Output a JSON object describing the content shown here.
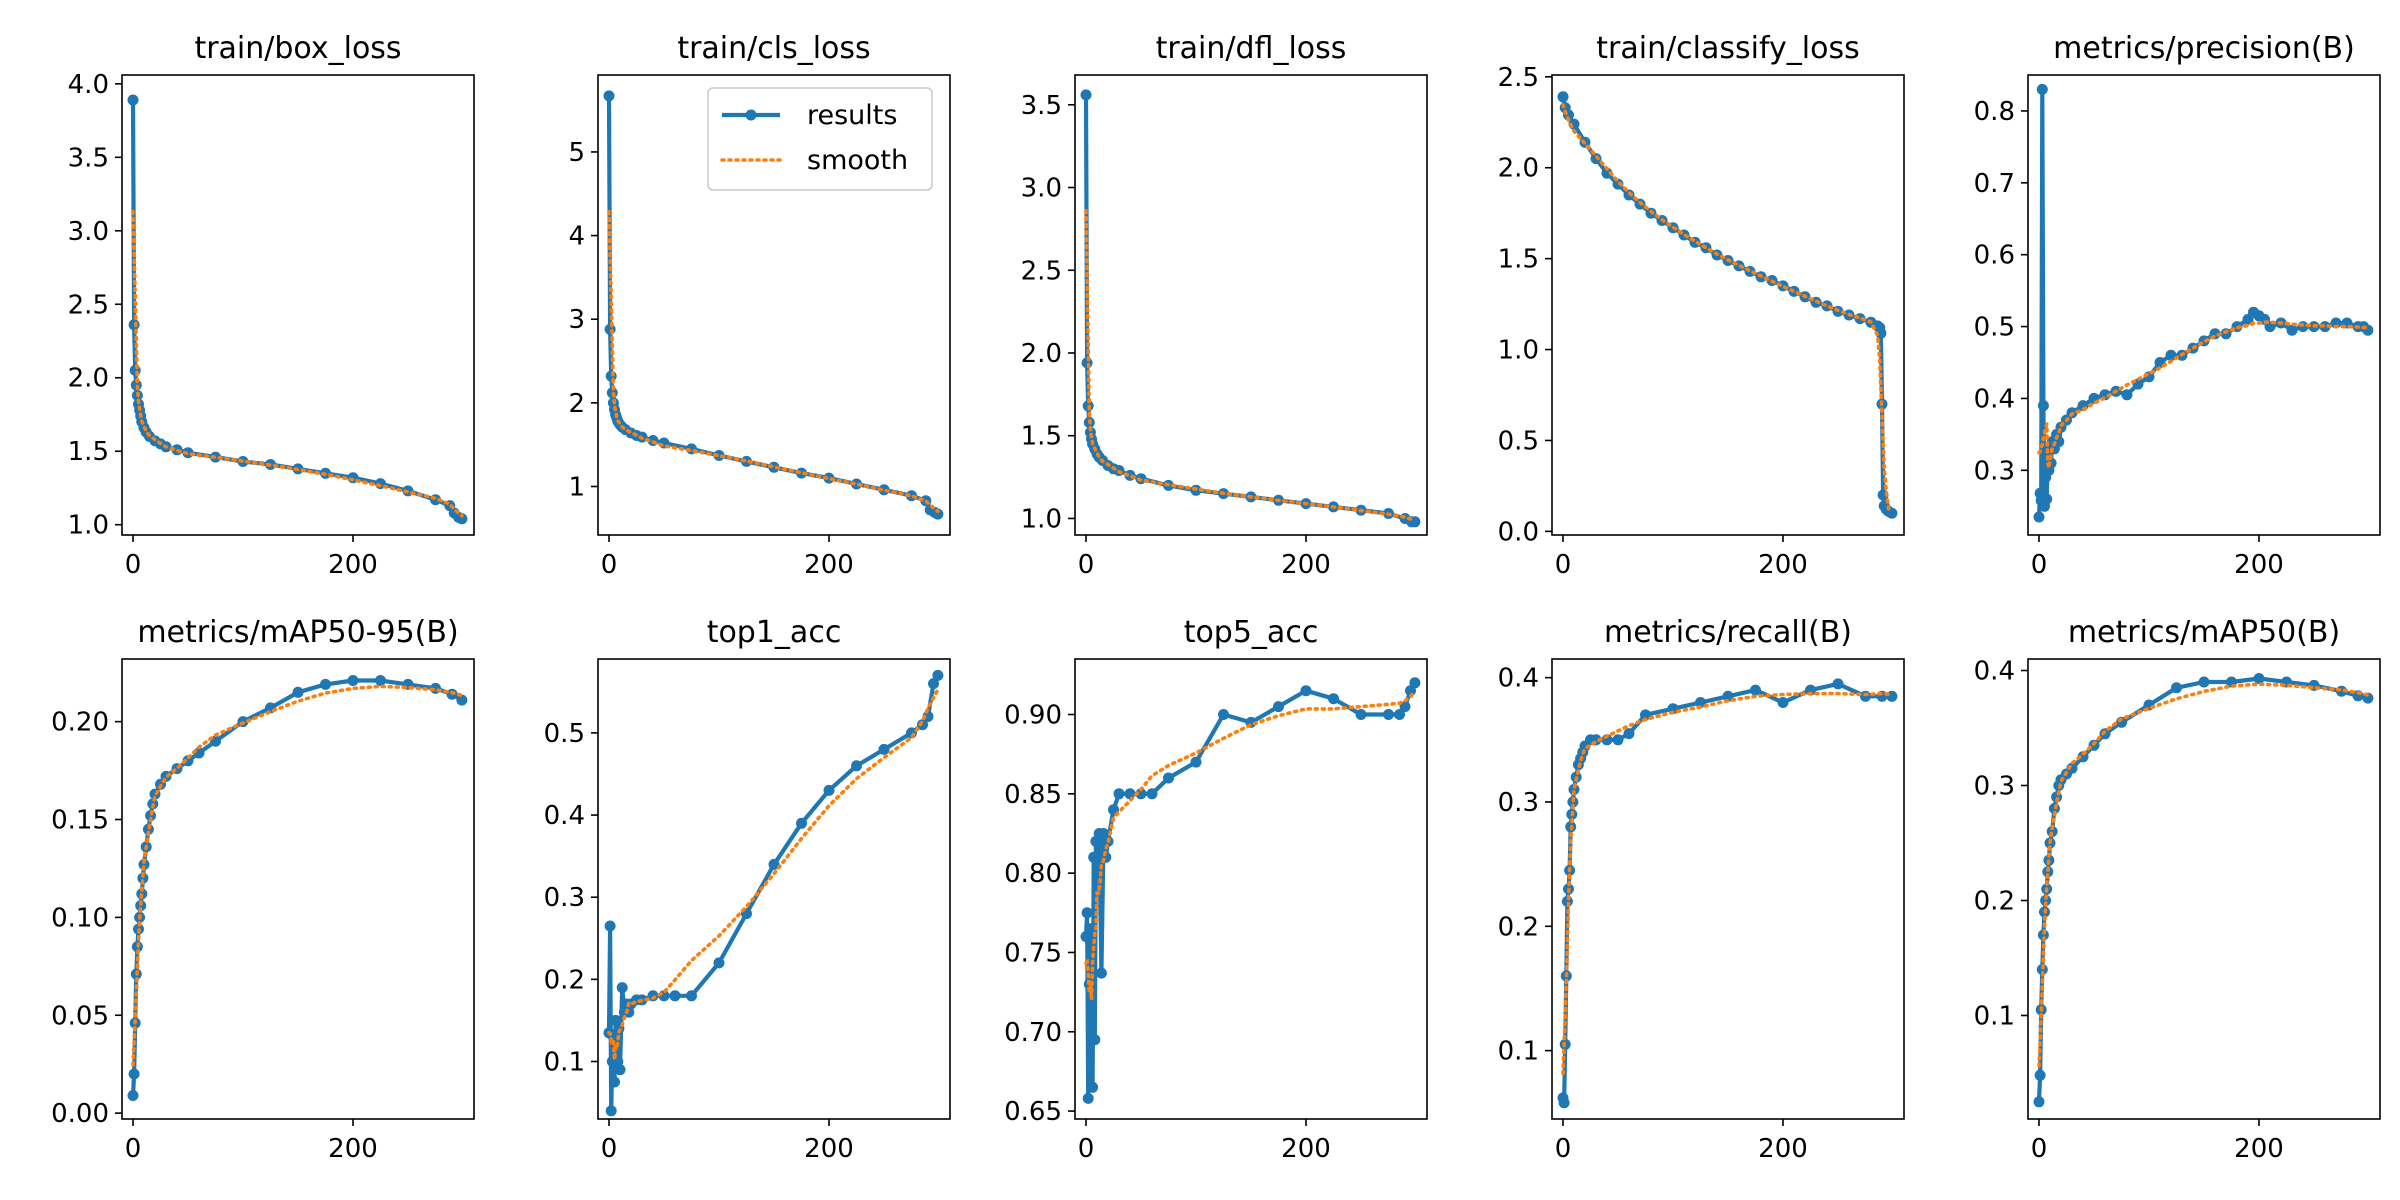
{
  "style": {
    "results_color": "#1f77b4",
    "smooth_color": "#ff7f0e"
  },
  "legend": {
    "entries": [
      "results",
      "smooth"
    ],
    "placement": "upper-right of train/cls_loss"
  },
  "chart_data": [
    {
      "type": "line",
      "title": "train/box_loss",
      "xlim": [
        -10,
        310
      ],
      "ylim": [
        0.93,
        4.06
      ],
      "xticks": [
        0,
        200
      ],
      "yticks": [
        1.0,
        1.5,
        2.0,
        2.5,
        3.0,
        3.5,
        4.0
      ],
      "yfmt": 1,
      "series": [
        {
          "name": "results",
          "x": [
            0,
            1,
            2,
            3,
            4,
            5,
            6,
            7,
            8,
            10,
            12,
            15,
            20,
            25,
            30,
            40,
            50,
            75,
            100,
            125,
            150,
            175,
            200,
            225,
            250,
            275,
            288,
            292,
            296,
            299
          ],
          "y": [
            3.89,
            2.36,
            2.05,
            1.95,
            1.88,
            1.82,
            1.78,
            1.74,
            1.7,
            1.66,
            1.63,
            1.6,
            1.57,
            1.55,
            1.53,
            1.51,
            1.49,
            1.46,
            1.43,
            1.41,
            1.38,
            1.35,
            1.32,
            1.28,
            1.23,
            1.17,
            1.13,
            1.08,
            1.05,
            1.04
          ]
        }
      ]
    },
    {
      "type": "line",
      "title": "train/cls_loss",
      "xlim": [
        -10,
        310
      ],
      "ylim": [
        0.42,
        5.92
      ],
      "xticks": [
        0,
        200
      ],
      "yticks": [
        1,
        2,
        3,
        4,
        5
      ],
      "yfmt": 0,
      "series": [
        {
          "name": "results",
          "x": [
            0,
            1,
            2,
            3,
            4,
            5,
            6,
            7,
            8,
            10,
            12,
            15,
            20,
            25,
            30,
            40,
            50,
            75,
            100,
            125,
            150,
            175,
            200,
            225,
            250,
            275,
            288,
            292,
            296,
            299
          ],
          "y": [
            5.67,
            2.88,
            2.32,
            2.12,
            2.0,
            1.92,
            1.86,
            1.82,
            1.78,
            1.74,
            1.71,
            1.68,
            1.64,
            1.61,
            1.59,
            1.55,
            1.52,
            1.45,
            1.37,
            1.3,
            1.23,
            1.16,
            1.1,
            1.03,
            0.96,
            0.89,
            0.83,
            0.72,
            0.69,
            0.67
          ]
        }
      ]
    },
    {
      "type": "line",
      "title": "train/dfl_loss",
      "xlim": [
        -10,
        310
      ],
      "ylim": [
        0.9,
        3.68
      ],
      "xticks": [
        0,
        200
      ],
      "yticks": [
        1.0,
        1.5,
        2.0,
        2.5,
        3.0,
        3.5
      ],
      "yfmt": 1,
      "series": [
        {
          "name": "results",
          "x": [
            0,
            1,
            2,
            3,
            4,
            5,
            6,
            8,
            10,
            12,
            15,
            20,
            25,
            30,
            40,
            50,
            75,
            100,
            125,
            150,
            175,
            200,
            225,
            250,
            275,
            290,
            296,
            299
          ],
          "y": [
            3.56,
            1.94,
            1.68,
            1.58,
            1.52,
            1.48,
            1.45,
            1.42,
            1.39,
            1.37,
            1.35,
            1.32,
            1.3,
            1.29,
            1.26,
            1.24,
            1.2,
            1.17,
            1.15,
            1.13,
            1.11,
            1.09,
            1.07,
            1.05,
            1.03,
            1.0,
            0.98,
            0.98
          ]
        }
      ]
    },
    {
      "type": "line",
      "title": "train/classify_loss",
      "xlim": [
        -10,
        310
      ],
      "ylim": [
        -0.02,
        2.51
      ],
      "xticks": [
        0,
        200
      ],
      "yticks": [
        0.0,
        0.5,
        1.0,
        1.5,
        2.0,
        2.5
      ],
      "yfmt": 1,
      "series": [
        {
          "name": "results",
          "x": [
            0,
            2,
            5,
            10,
            20,
            30,
            40,
            50,
            60,
            70,
            80,
            90,
            100,
            110,
            120,
            130,
            140,
            150,
            160,
            170,
            180,
            190,
            200,
            210,
            220,
            230,
            240,
            250,
            260,
            270,
            280,
            286,
            288,
            289,
            290,
            291,
            292,
            294,
            296,
            299
          ],
          "y": [
            2.39,
            2.33,
            2.29,
            2.24,
            2.14,
            2.05,
            1.97,
            1.91,
            1.85,
            1.8,
            1.75,
            1.71,
            1.67,
            1.63,
            1.59,
            1.56,
            1.52,
            1.49,
            1.46,
            1.43,
            1.4,
            1.38,
            1.35,
            1.32,
            1.29,
            1.26,
            1.24,
            1.21,
            1.19,
            1.17,
            1.15,
            1.13,
            1.12,
            1.09,
            0.7,
            0.2,
            0.14,
            0.12,
            0.11,
            0.1
          ]
        }
      ]
    },
    {
      "type": "line",
      "title": "metrics/precision(B)",
      "xlim": [
        -10,
        310
      ],
      "ylim": [
        0.21,
        0.85
      ],
      "xticks": [
        0,
        200
      ],
      "yticks": [
        0.3,
        0.4,
        0.5,
        0.6,
        0.7,
        0.8
      ],
      "yfmt": 1,
      "series": [
        {
          "name": "results",
          "x": [
            0,
            1,
            2,
            3,
            4,
            5,
            6,
            7,
            8,
            9,
            10,
            11,
            12,
            14,
            16,
            18,
            20,
            25,
            30,
            40,
            50,
            60,
            70,
            80,
            90,
            100,
            110,
            120,
            130,
            140,
            150,
            160,
            170,
            180,
            190,
            195,
            200,
            205,
            210,
            220,
            230,
            240,
            250,
            260,
            270,
            280,
            290,
            295,
            299
          ],
          "y": [
            0.235,
            0.268,
            0.258,
            0.83,
            0.39,
            0.25,
            0.29,
            0.26,
            0.32,
            0.3,
            0.33,
            0.31,
            0.34,
            0.33,
            0.35,
            0.34,
            0.36,
            0.37,
            0.38,
            0.39,
            0.4,
            0.405,
            0.41,
            0.405,
            0.42,
            0.43,
            0.45,
            0.46,
            0.46,
            0.47,
            0.48,
            0.49,
            0.49,
            0.5,
            0.51,
            0.52,
            0.515,
            0.51,
            0.5,
            0.505,
            0.495,
            0.5,
            0.5,
            0.5,
            0.505,
            0.505,
            0.5,
            0.5,
            0.495
          ]
        }
      ]
    },
    {
      "type": "line",
      "title": "metrics/mAP50-95(B)",
      "xlim": [
        -10,
        310
      ],
      "ylim": [
        -0.003,
        0.232
      ],
      "xticks": [
        0,
        200
      ],
      "yticks": [
        0.0,
        0.05,
        0.1,
        0.15,
        0.2
      ],
      "yfmt": 2,
      "series": [
        {
          "name": "results",
          "x": [
            0,
            1,
            2,
            3,
            4,
            5,
            6,
            7,
            8,
            9,
            10,
            12,
            14,
            16,
            18,
            20,
            25,
            30,
            40,
            50,
            60,
            75,
            100,
            125,
            150,
            175,
            200,
            225,
            250,
            275,
            290,
            299
          ],
          "y": [
            0.009,
            0.02,
            0.046,
            0.071,
            0.085,
            0.094,
            0.1,
            0.106,
            0.112,
            0.12,
            0.127,
            0.136,
            0.145,
            0.152,
            0.158,
            0.163,
            0.168,
            0.172,
            0.176,
            0.18,
            0.184,
            0.19,
            0.2,
            0.207,
            0.215,
            0.219,
            0.221,
            0.221,
            0.219,
            0.217,
            0.214,
            0.211
          ]
        }
      ]
    },
    {
      "type": "line",
      "title": "top1_acc",
      "xlim": [
        -10,
        310
      ],
      "ylim": [
        0.03,
        0.59
      ],
      "xticks": [
        0,
        200
      ],
      "yticks": [
        0.1,
        0.2,
        0.3,
        0.4,
        0.5
      ],
      "yfmt": 1,
      "series": [
        {
          "name": "results",
          "x": [
            0,
            1,
            2,
            3,
            4,
            5,
            6,
            7,
            8,
            9,
            10,
            12,
            14,
            16,
            18,
            20,
            25,
            30,
            40,
            50,
            60,
            75,
            100,
            125,
            150,
            175,
            200,
            225,
            250,
            275,
            285,
            290,
            295,
            299
          ],
          "y": [
            0.135,
            0.265,
            0.04,
            0.1,
            0.13,
            0.075,
            0.15,
            0.12,
            0.1,
            0.14,
            0.09,
            0.19,
            0.16,
            0.17,
            0.16,
            0.17,
            0.175,
            0.175,
            0.18,
            0.18,
            0.18,
            0.18,
            0.22,
            0.28,
            0.34,
            0.39,
            0.43,
            0.46,
            0.48,
            0.5,
            0.51,
            0.52,
            0.56,
            0.57
          ]
        }
      ]
    },
    {
      "type": "line",
      "title": "top5_acc",
      "xlim": [
        -10,
        310
      ],
      "ylim": [
        0.645,
        0.935
      ],
      "xticks": [
        0,
        200
      ],
      "yticks": [
        0.65,
        0.7,
        0.75,
        0.8,
        0.85,
        0.9
      ],
      "yfmt": 2,
      "series": [
        {
          "name": "results",
          "x": [
            0,
            1,
            2,
            3,
            4,
            5,
            6,
            7,
            8,
            9,
            10,
            12,
            14,
            16,
            18,
            20,
            25,
            30,
            40,
            50,
            60,
            75,
            100,
            125,
            150,
            175,
            200,
            225,
            250,
            275,
            285,
            290,
            295,
            299
          ],
          "y": [
            0.76,
            0.775,
            0.658,
            0.73,
            0.765,
            0.72,
            0.665,
            0.81,
            0.695,
            0.82,
            0.8,
            0.825,
            0.737,
            0.825,
            0.81,
            0.82,
            0.84,
            0.85,
            0.85,
            0.85,
            0.85,
            0.86,
            0.87,
            0.9,
            0.895,
            0.905,
            0.915,
            0.91,
            0.9,
            0.9,
            0.9,
            0.905,
            0.915,
            0.92
          ]
        }
      ]
    },
    {
      "type": "line",
      "title": "metrics/recall(B)",
      "xlim": [
        -10,
        310
      ],
      "ylim": [
        0.045,
        0.415
      ],
      "xticks": [
        0,
        200
      ],
      "yticks": [
        0.1,
        0.2,
        0.3,
        0.4
      ],
      "yfmt": 1,
      "series": [
        {
          "name": "results",
          "x": [
            0,
            1,
            2,
            3,
            4,
            5,
            6,
            7,
            8,
            9,
            10,
            12,
            14,
            16,
            18,
            20,
            25,
            30,
            40,
            50,
            60,
            75,
            100,
            125,
            150,
            175,
            200,
            225,
            250,
            275,
            290,
            299
          ],
          "y": [
            0.062,
            0.058,
            0.105,
            0.16,
            0.22,
            0.23,
            0.245,
            0.28,
            0.29,
            0.3,
            0.31,
            0.32,
            0.33,
            0.335,
            0.34,
            0.345,
            0.35,
            0.35,
            0.35,
            0.35,
            0.355,
            0.37,
            0.375,
            0.38,
            0.385,
            0.39,
            0.38,
            0.39,
            0.395,
            0.385,
            0.385,
            0.385
          ]
        }
      ]
    },
    {
      "type": "line",
      "title": "metrics/mAP50(B)",
      "xlim": [
        -10,
        310
      ],
      "ylim": [
        0.01,
        0.41
      ],
      "xticks": [
        0,
        200
      ],
      "yticks": [
        0.1,
        0.2,
        0.3,
        0.4
      ],
      "yfmt": 1,
      "series": [
        {
          "name": "results",
          "x": [
            0,
            1,
            2,
            3,
            4,
            5,
            6,
            7,
            8,
            9,
            10,
            12,
            14,
            16,
            18,
            20,
            25,
            30,
            40,
            50,
            60,
            75,
            100,
            125,
            150,
            175,
            200,
            225,
            250,
            275,
            290,
            299
          ],
          "y": [
            0.025,
            0.048,
            0.105,
            0.14,
            0.17,
            0.19,
            0.2,
            0.21,
            0.225,
            0.235,
            0.25,
            0.26,
            0.28,
            0.29,
            0.3,
            0.305,
            0.31,
            0.315,
            0.325,
            0.335,
            0.345,
            0.355,
            0.37,
            0.385,
            0.39,
            0.39,
            0.393,
            0.39,
            0.387,
            0.382,
            0.378,
            0.376
          ]
        }
      ]
    }
  ]
}
